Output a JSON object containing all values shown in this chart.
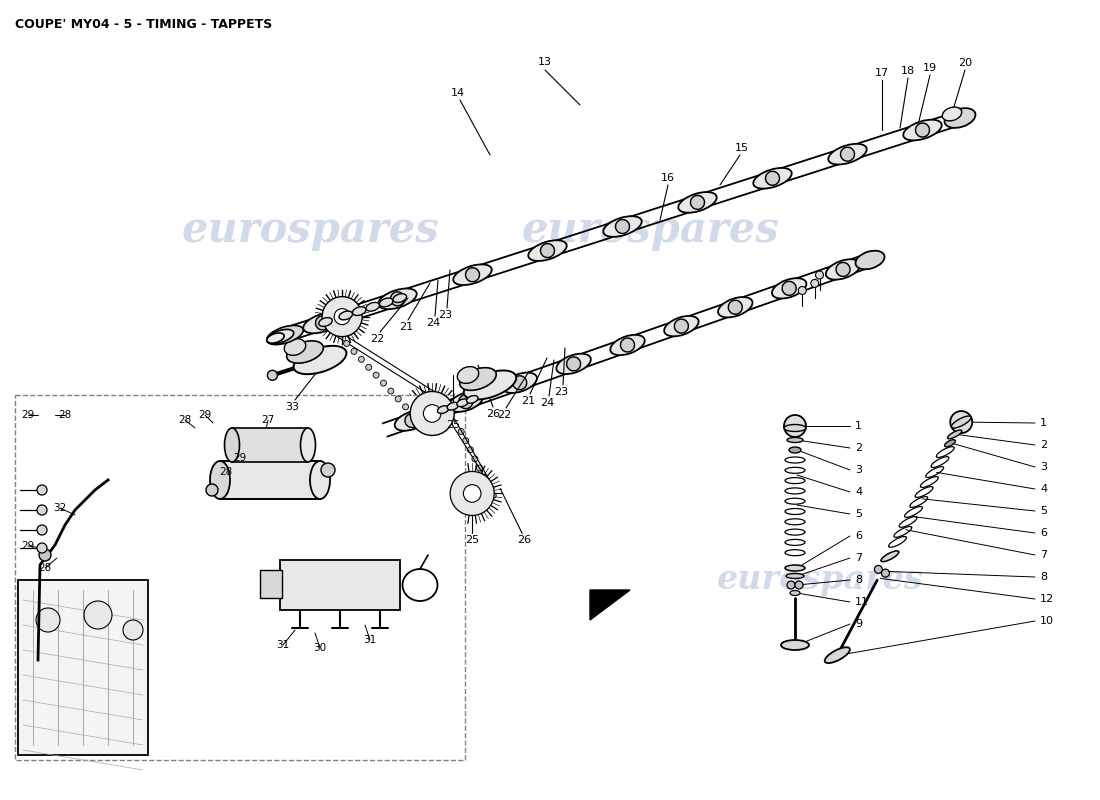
{
  "title": "COUPE' MY04 - 5 - TIMING - TAPPETS",
  "bg": "#ffffff",
  "wm": "eurospares",
  "wm_color": "#c8d4e8",
  "fig_w": 11.0,
  "fig_h": 8.0,
  "dpi": 100
}
